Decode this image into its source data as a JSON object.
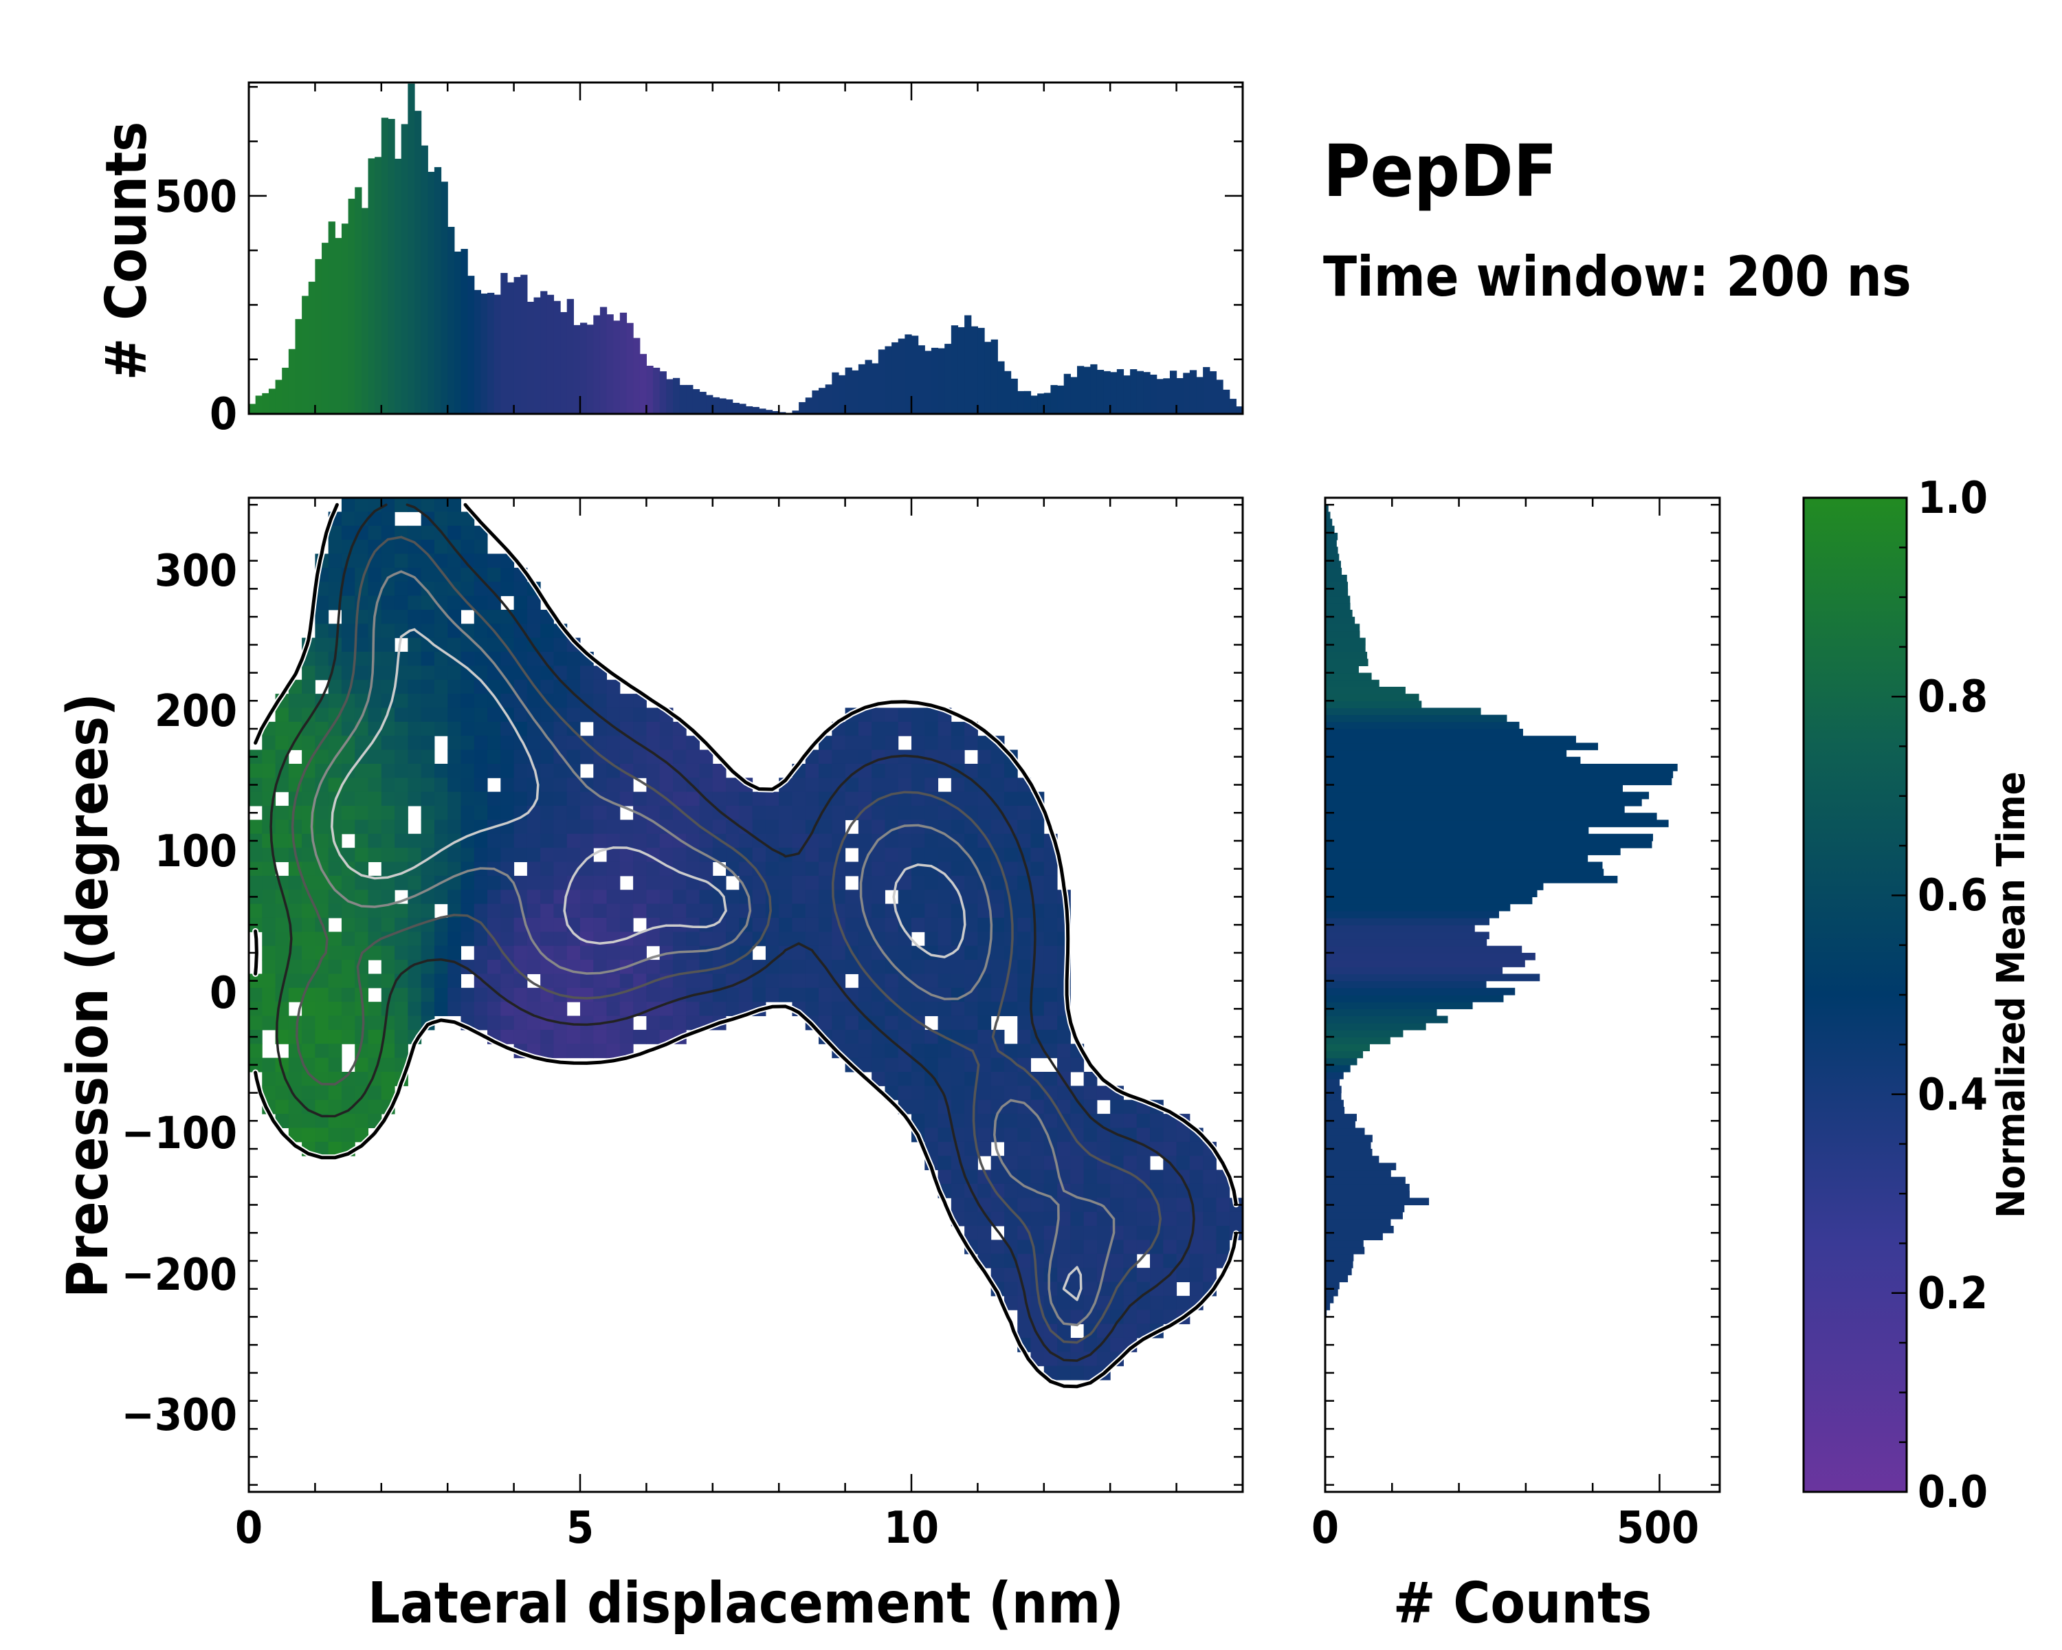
{
  "figure": {
    "title": "PepDF",
    "subtitle": "Time window: 200 ns"
  },
  "colors": {
    "low": "#6a359e",
    "mid_low": "#2b3580",
    "mid": "#003a6b",
    "mid_high": "#0f6052",
    "high": "#228b22"
  },
  "chart_data": [
    {
      "id": "top_histogram",
      "type": "bar",
      "xlabel": "",
      "ylabel": "# Counts",
      "xlim": [
        0,
        15
      ],
      "ylim": [
        0,
        760
      ],
      "ytick_labels": [
        "0",
        "500"
      ],
      "bin_width_nm": 0.1,
      "x_profile": [
        [
          0,
          20
        ],
        [
          0.5,
          80
        ],
        [
          0.9,
          280
        ],
        [
          1.2,
          400
        ],
        [
          1.6,
          480
        ],
        [
          2.0,
          610
        ],
        [
          2.3,
          650
        ],
        [
          2.5,
          700
        ],
        [
          2.7,
          560
        ],
        [
          3.0,
          470
        ],
        [
          3.2,
          360
        ],
        [
          3.6,
          280
        ],
        [
          4.0,
          300
        ],
        [
          4.6,
          270
        ],
        [
          5.1,
          210
        ],
        [
          5.7,
          240
        ],
        [
          6.0,
          120
        ],
        [
          6.5,
          70
        ],
        [
          7.0,
          40
        ],
        [
          7.5,
          20
        ],
        [
          8.0,
          5
        ],
        [
          8.2,
          0
        ],
        [
          8.5,
          50
        ],
        [
          9.0,
          100
        ],
        [
          9.5,
          130
        ],
        [
          10.0,
          170
        ],
        [
          10.4,
          160
        ],
        [
          10.8,
          220
        ],
        [
          11.2,
          170
        ],
        [
          11.6,
          60
        ],
        [
          12.0,
          40
        ],
        [
          12.3,
          80
        ],
        [
          12.7,
          110
        ],
        [
          13.2,
          100
        ],
        [
          13.6,
          90
        ],
        [
          14.2,
          90
        ],
        [
          14.5,
          100
        ],
        [
          14.8,
          40
        ],
        [
          15,
          10
        ]
      ],
      "color_by_time": [
        [
          0,
          0.95
        ],
        [
          1.5,
          0.9
        ],
        [
          2.5,
          0.7
        ],
        [
          3.3,
          0.5
        ],
        [
          3.8,
          0.3
        ],
        [
          5.0,
          0.25
        ],
        [
          6.0,
          0.12
        ],
        [
          6.5,
          0.35
        ],
        [
          7.5,
          0.35
        ],
        [
          9.0,
          0.4
        ],
        [
          12.0,
          0.45
        ],
        [
          15,
          0.4
        ]
      ]
    },
    {
      "id": "main_map",
      "type": "heatmap",
      "xlabel": "Lateral displacement (nm)",
      "ylabel": "Precession (degrees)",
      "xlim": [
        0,
        15
      ],
      "ylim": [
        -355,
        355
      ],
      "xtick_labels": [
        "0",
        "5",
        "10"
      ],
      "ytick_labels": [
        "300",
        "200",
        "100",
        "0",
        "−100",
        "−200",
        "−300"
      ],
      "clusters": [
        {
          "cx": 1.4,
          "cy": 120,
          "sx": 0.8,
          "sy": 55,
          "t": 0.9
        },
        {
          "cx": 1.2,
          "cy": -30,
          "sx": 0.6,
          "sy": 45,
          "t": 0.92
        },
        {
          "cx": 2.4,
          "cy": 130,
          "sx": 0.8,
          "sy": 65,
          "t": 0.75
        },
        {
          "cx": 2.2,
          "cy": 280,
          "sx": 0.6,
          "sy": 55,
          "t": 0.55
        },
        {
          "cx": 3.3,
          "cy": 210,
          "sx": 0.7,
          "sy": 60,
          "t": 0.5
        },
        {
          "cx": 4.3,
          "cy": 150,
          "sx": 0.9,
          "sy": 50,
          "t": 0.4
        },
        {
          "cx": 4.8,
          "cy": 40,
          "sx": 1.0,
          "sy": 45,
          "t": 0.18
        },
        {
          "cx": 6.0,
          "cy": 90,
          "sx": 0.8,
          "sy": 55,
          "t": 0.25
        },
        {
          "cx": 7.2,
          "cy": 60,
          "sx": 0.6,
          "sy": 35,
          "t": 0.4
        },
        {
          "cx": 9.6,
          "cy": 80,
          "sx": 0.9,
          "sy": 65,
          "t": 0.35
        },
        {
          "cx": 10.8,
          "cy": 40,
          "sx": 0.8,
          "sy": 70,
          "t": 0.4
        },
        {
          "cx": 11.6,
          "cy": -100,
          "sx": 0.6,
          "sy": 40,
          "t": 0.35
        },
        {
          "cx": 13.0,
          "cy": -160,
          "sx": 1.0,
          "sy": 45,
          "t": 0.35
        },
        {
          "cx": 12.4,
          "cy": -220,
          "sx": 0.4,
          "sy": 30,
          "t": 0.35
        }
      ]
    },
    {
      "id": "right_histogram",
      "type": "bar",
      "orientation": "horizontal",
      "xlabel": "# Counts",
      "xlim": [
        0,
        590
      ],
      "ylim": [
        -355,
        355
      ],
      "xtick_labels": [
        "0",
        "500"
      ],
      "bin_height_deg": 5,
      "y_profile": [
        [
          -355,
          0
        ],
        [
          -230,
          0
        ],
        [
          -210,
          20
        ],
        [
          -180,
          60
        ],
        [
          -150,
          140
        ],
        [
          -120,
          90
        ],
        [
          -100,
          60
        ],
        [
          -80,
          30
        ],
        [
          -60,
          20
        ],
        [
          -40,
          60
        ],
        [
          -20,
          150
        ],
        [
          0,
          250
        ],
        [
          20,
          300
        ],
        [
          40,
          280
        ],
        [
          50,
          200
        ],
        [
          80,
          380
        ],
        [
          100,
          440
        ],
        [
          130,
          470
        ],
        [
          150,
          530
        ],
        [
          170,
          420
        ],
        [
          190,
          300
        ],
        [
          210,
          150
        ],
        [
          230,
          60
        ],
        [
          260,
          50
        ],
        [
          300,
          30
        ],
        [
          330,
          15
        ],
        [
          355,
          0
        ]
      ],
      "color_by_time": [
        [
          -355,
          0.4
        ],
        [
          -60,
          0.4
        ],
        [
          -40,
          0.75
        ],
        [
          0,
          0.5
        ],
        [
          20,
          0.3
        ],
        [
          50,
          0.35
        ],
        [
          60,
          0.5
        ],
        [
          190,
          0.5
        ],
        [
          210,
          0.7
        ],
        [
          355,
          0.6
        ]
      ]
    },
    {
      "id": "colorbar",
      "type": "colorbar",
      "label": "Normalized Mean Time",
      "range": [
        0.0,
        1.0
      ],
      "tick_labels": [
        "0.0",
        "0.2",
        "0.4",
        "0.6",
        "0.8",
        "1.0"
      ]
    }
  ]
}
